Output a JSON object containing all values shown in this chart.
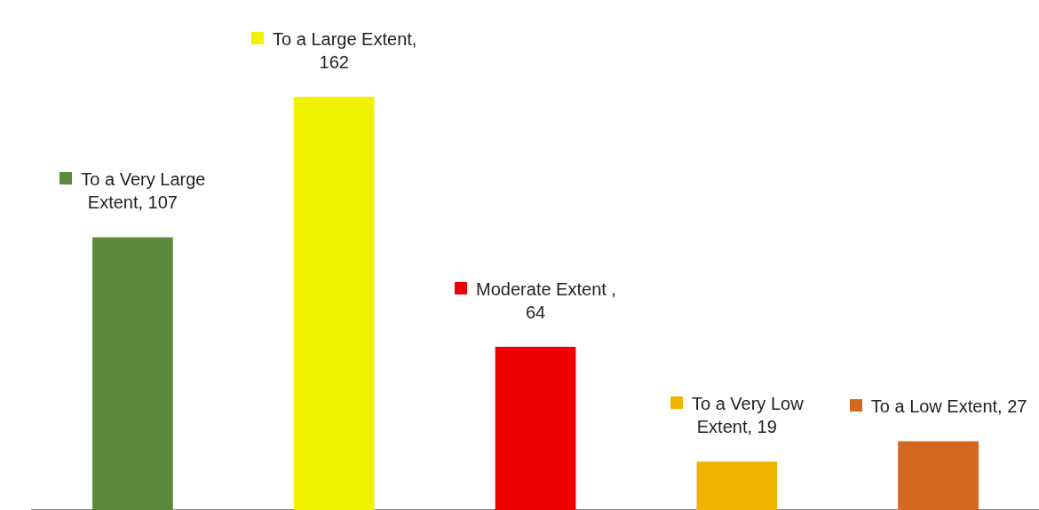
{
  "chart_data": {
    "type": "bar",
    "categories": [
      null,
      null,
      null,
      null,
      null
    ],
    "values": [
      107,
      162,
      64,
      19,
      27
    ],
    "value_labels": [
      "To a Very Large Extent, 107",
      "To a Large Extent, 162",
      "Moderate Extent , 64",
      "To a Very Low Extent, 19",
      "To a Low Extent, 27"
    ],
    "colors": [
      "#5b8a3c",
      "#f2f200",
      "#ee0000",
      "#f0b400",
      "#d2691e"
    ],
    "tick_labels": false,
    "grid": false,
    "legend": false
  }
}
